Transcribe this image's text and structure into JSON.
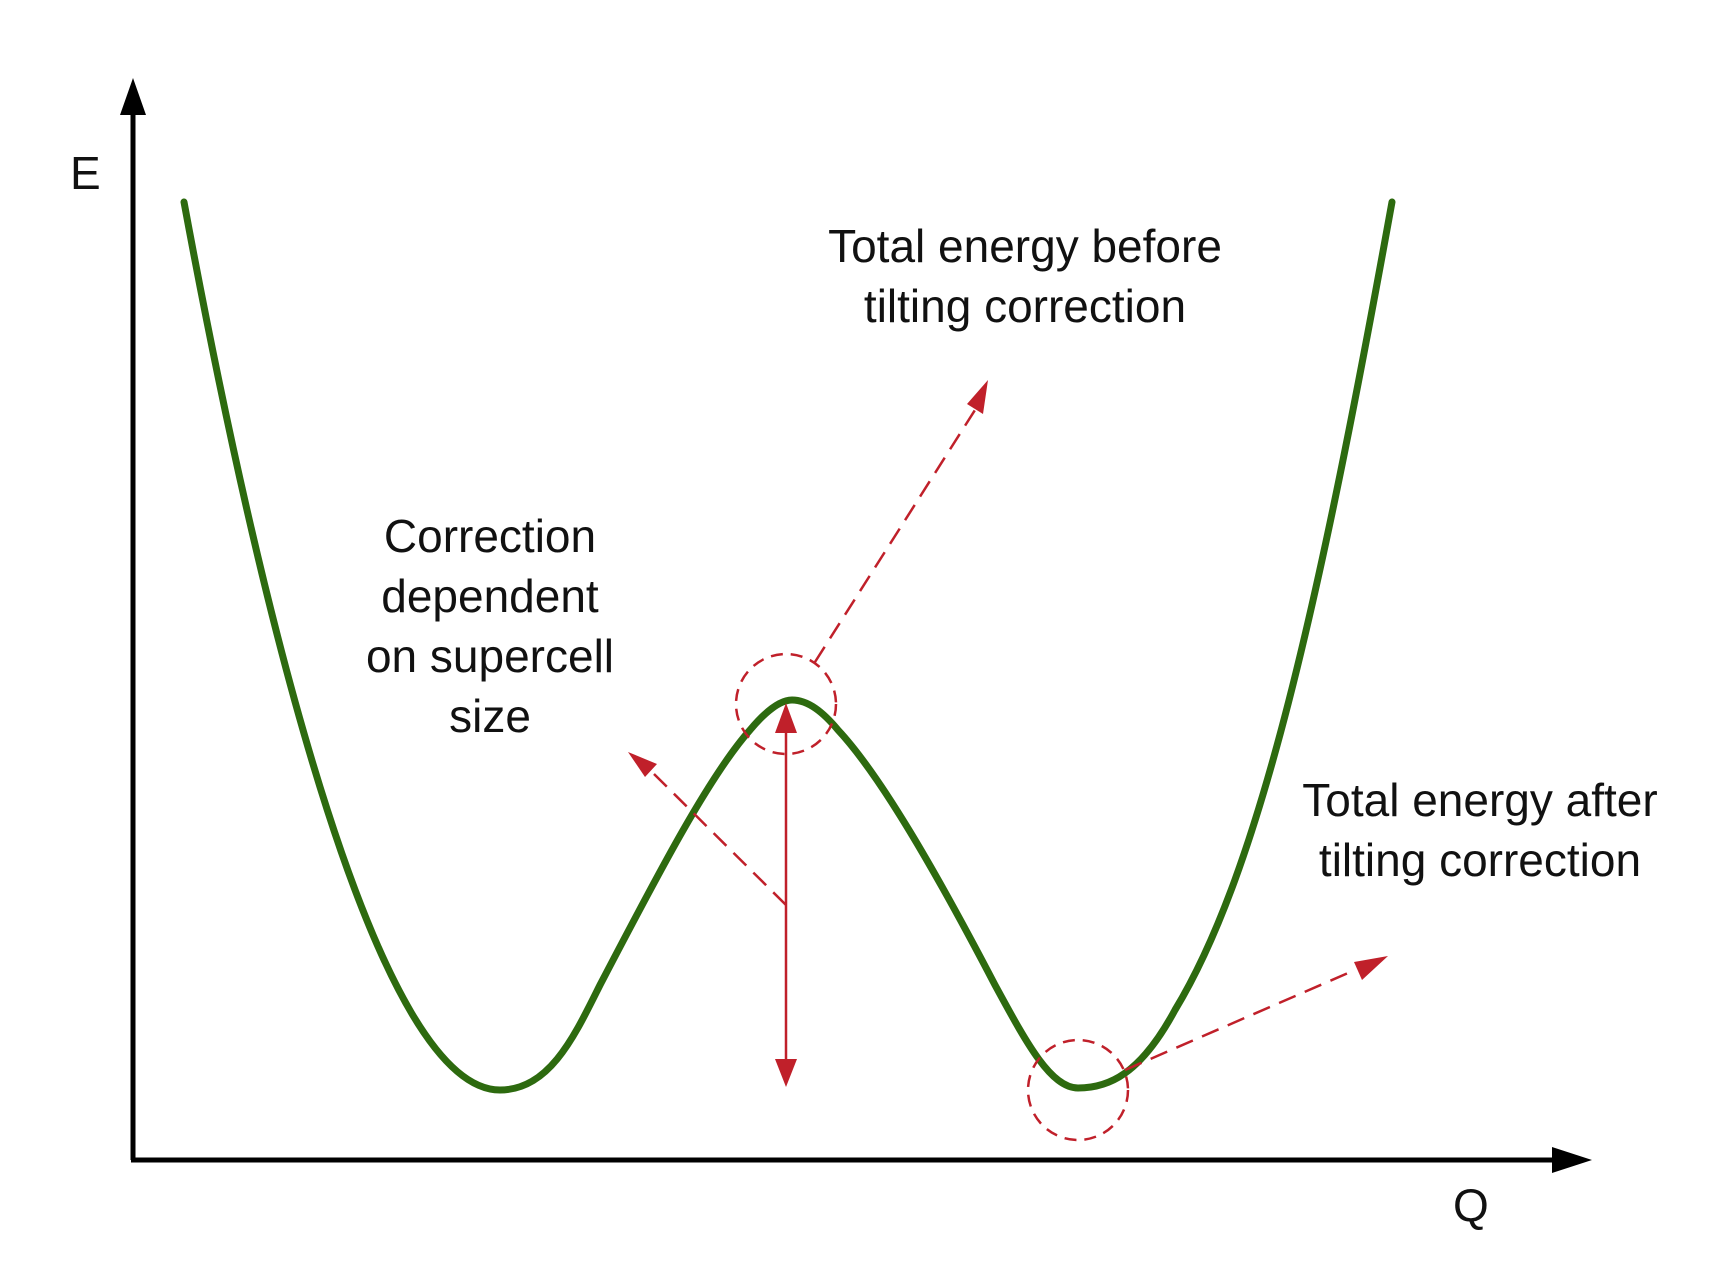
{
  "axes": {
    "y_label": "E",
    "x_label": "Q"
  },
  "annotations": {
    "before": {
      "line1": "Total energy before",
      "line2": "tilting correction"
    },
    "after": {
      "line1": "Total energy after",
      "line2": "tilting correction"
    },
    "correction": {
      "line1": "Correction",
      "line2": "dependent",
      "line3": "on supercell",
      "line4": "size"
    }
  },
  "colors": {
    "curve": "#2d6a0f",
    "annotation": "#c0202a",
    "axis": "#000000"
  }
}
